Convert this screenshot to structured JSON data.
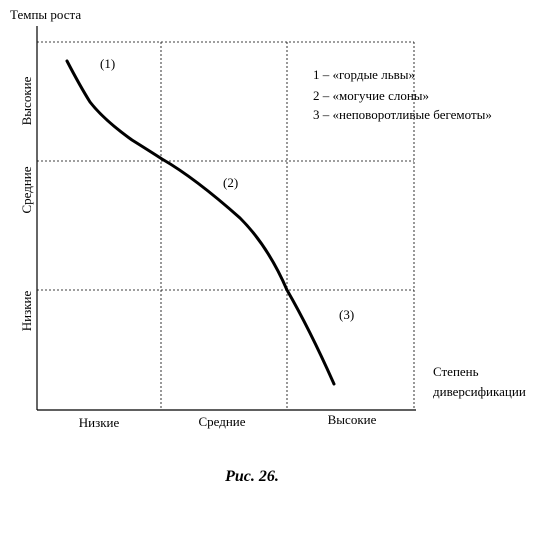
{
  "diagram": {
    "y_axis_title": "Темпы роста",
    "x_axis_title_line1": "Степень",
    "x_axis_title_line2": "диверсификации",
    "y_levels": [
      "Высокие",
      "Средние",
      "Низкие"
    ],
    "x_levels": [
      "Низкие",
      "Средние",
      "Высокие"
    ],
    "segment_markers": [
      "(1)",
      "(2)",
      "(3)"
    ],
    "legend": [
      "1 – «гордые львы»",
      "2 – «могучие слоны»",
      "3 – «неповоротливые  бегемоты»"
    ],
    "caption": "Рис. 26.",
    "colors": {
      "ink": "#000000",
      "background": "#ffffff"
    }
  }
}
